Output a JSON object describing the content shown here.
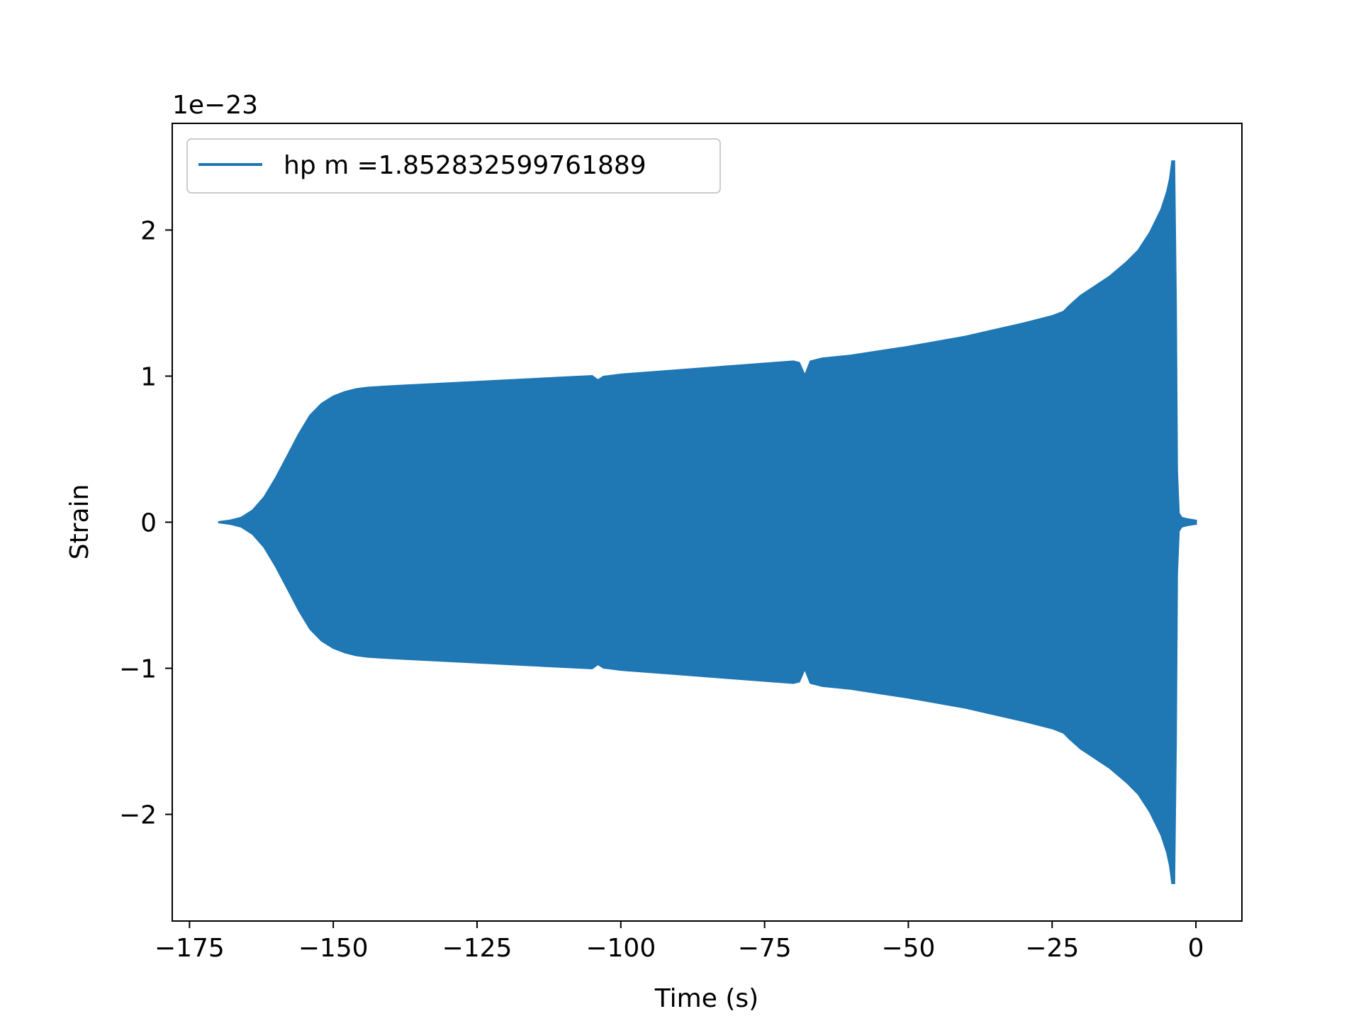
{
  "chart_data": {
    "type": "line",
    "title": "",
    "xlabel": "Time (s)",
    "ylabel": "Strain",
    "y_offset_label": "1e−23",
    "xlim": [
      -178,
      8
    ],
    "ylim": [
      -2.73,
      2.73
    ],
    "xticks": [
      -175,
      -150,
      -125,
      -100,
      -75,
      -50,
      -25,
      0
    ],
    "xtick_labels": [
      "−175",
      "−150",
      "−125",
      "−100",
      "−75",
      "−50",
      "−25",
      "0"
    ],
    "yticks": [
      -2,
      -1,
      0,
      1,
      2
    ],
    "ytick_labels": [
      "−2",
      "−1",
      "0",
      "1",
      "2"
    ],
    "grid": false,
    "legend_position": "upper-left",
    "series": [
      {
        "name": "hp m =1.852832599761889",
        "color": "#1f77b4",
        "envelope": {
          "x": [
            -170,
            -168,
            -166,
            -164,
            -162,
            -160,
            -158,
            -156,
            -154,
            -152,
            -150,
            -148,
            -146,
            -144,
            -140,
            -130,
            -120,
            -110,
            -105,
            -104,
            -103,
            -102,
            -100,
            -90,
            -80,
            -70,
            -69,
            -68,
            -67,
            -65,
            -60,
            -50,
            -40,
            -30,
            -25,
            -23,
            -22,
            -20,
            -15,
            -12,
            -10,
            -8,
            -6,
            -5,
            -4.5,
            -4.1,
            -3.8,
            -3.5,
            -3.3,
            -3.0,
            -2.5,
            -1.5,
            0
          ],
          "upper": [
            0.0,
            0.01,
            0.03,
            0.08,
            0.17,
            0.3,
            0.45,
            0.6,
            0.73,
            0.81,
            0.86,
            0.89,
            0.91,
            0.92,
            0.93,
            0.95,
            0.97,
            0.99,
            1.0,
            0.97,
            0.995,
            1.0,
            1.01,
            1.04,
            1.07,
            1.1,
            1.09,
            1.0,
            1.1,
            1.12,
            1.14,
            1.2,
            1.27,
            1.36,
            1.41,
            1.44,
            1.48,
            1.55,
            1.68,
            1.78,
            1.86,
            1.98,
            2.14,
            2.26,
            2.35,
            2.47,
            2.47,
            1.5,
            0.35,
            0.06,
            0.03,
            0.02,
            0.01
          ],
          "lower": [
            0.0,
            -0.01,
            -0.03,
            -0.08,
            -0.17,
            -0.3,
            -0.45,
            -0.6,
            -0.73,
            -0.81,
            -0.86,
            -0.89,
            -0.91,
            -0.92,
            -0.93,
            -0.95,
            -0.97,
            -0.99,
            -1.0,
            -0.97,
            -0.995,
            -1.0,
            -1.01,
            -1.04,
            -1.07,
            -1.1,
            -1.09,
            -1.0,
            -1.1,
            -1.12,
            -1.14,
            -1.2,
            -1.27,
            -1.36,
            -1.41,
            -1.44,
            -1.48,
            -1.55,
            -1.68,
            -1.78,
            -1.86,
            -1.98,
            -2.14,
            -2.26,
            -2.35,
            -2.47,
            -2.47,
            -1.5,
            -0.35,
            -0.06,
            -0.03,
            -0.02,
            -0.01
          ]
        }
      }
    ]
  }
}
